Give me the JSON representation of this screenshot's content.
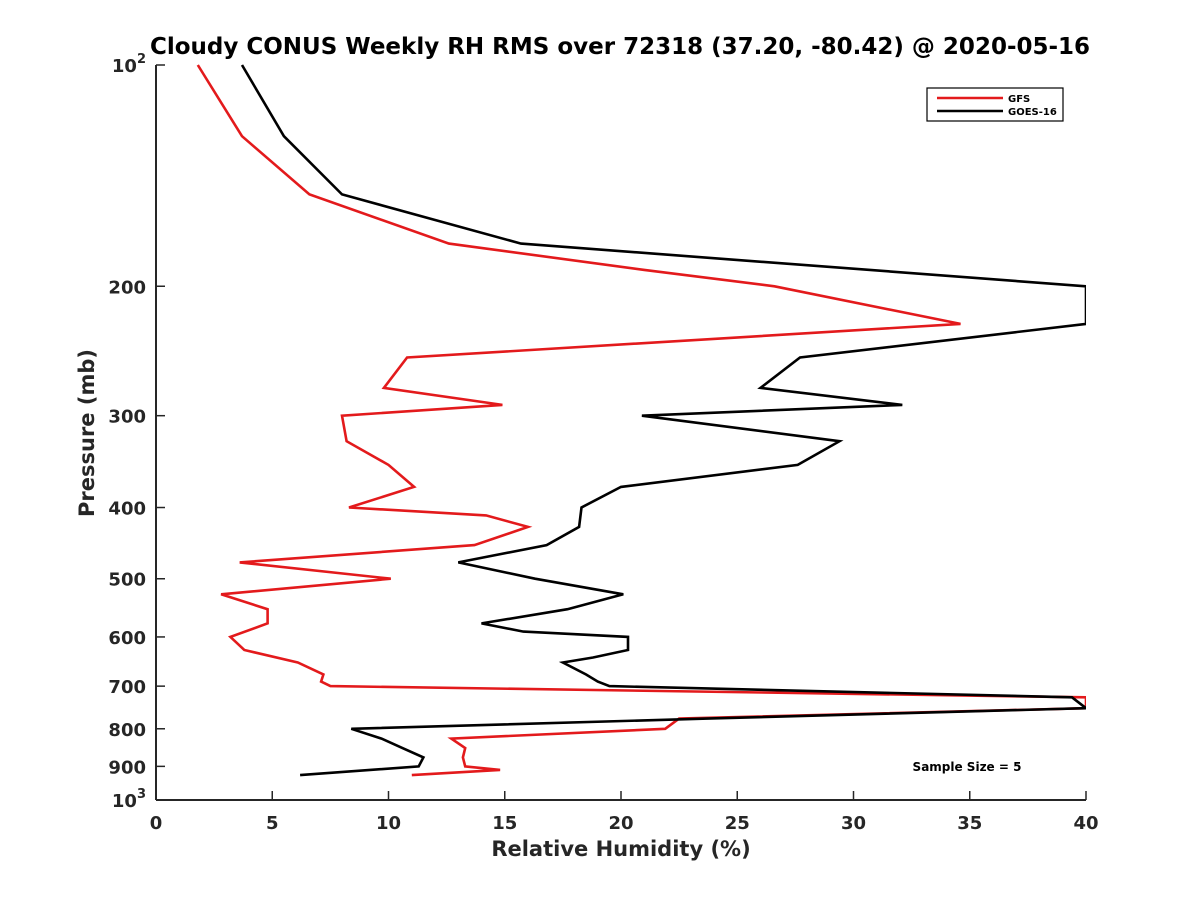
{
  "chart_data": {
    "type": "line",
    "title": "Cloudy CONUS Weekly RH RMS over 72318 (37.20, -80.42) @ 2020-05-16",
    "xlabel": "Relative Humidity (%)",
    "ylabel": "Pressure (mb)",
    "xlim": [
      0,
      40
    ],
    "ylim": [
      100,
      1000
    ],
    "yscale": "log",
    "y_reversed": true,
    "grid": false,
    "legend_position": "top-right",
    "x_ticks": [
      "0",
      "5",
      "10",
      "15",
      "20",
      "25",
      "30",
      "35",
      "40"
    ],
    "y_ticks": [
      {
        "value": 100,
        "base": "10",
        "exp": "2"
      },
      {
        "value": 200,
        "label": "200"
      },
      {
        "value": 300,
        "label": "300"
      },
      {
        "value": 400,
        "label": "400"
      },
      {
        "value": 500,
        "label": "500"
      },
      {
        "value": 600,
        "label": "600"
      },
      {
        "value": 700,
        "label": "700"
      },
      {
        "value": 800,
        "label": "800"
      },
      {
        "value": 900,
        "label": "900"
      },
      {
        "value": 1000,
        "base": "10",
        "exp": "3"
      }
    ],
    "annotation": "Sample Size = 5",
    "series": [
      {
        "name": "GFS",
        "color": "#e31a1c",
        "points": [
          [
            1.8,
            100
          ],
          [
            3.7,
            125
          ],
          [
            6.6,
            150
          ],
          [
            12.6,
            175
          ],
          [
            21.0,
            190
          ],
          [
            26.6,
            200
          ],
          [
            34.6,
            225
          ],
          [
            10.8,
            250
          ],
          [
            9.8,
            275
          ],
          [
            14.9,
            290
          ],
          [
            8.0,
            300
          ],
          [
            8.2,
            325
          ],
          [
            10.0,
            350
          ],
          [
            11.1,
            375
          ],
          [
            8.3,
            400
          ],
          [
            14.2,
            410
          ],
          [
            16.0,
            425
          ],
          [
            13.7,
            450
          ],
          [
            3.6,
            475
          ],
          [
            10.1,
            500
          ],
          [
            2.8,
            525
          ],
          [
            4.8,
            550
          ],
          [
            4.8,
            575
          ],
          [
            3.2,
            600
          ],
          [
            3.8,
            625
          ],
          [
            6.1,
            650
          ],
          [
            7.2,
            675
          ],
          [
            7.1,
            690
          ],
          [
            7.5,
            700
          ],
          [
            40.0,
            725
          ],
          [
            40.0,
            750
          ],
          [
            22.5,
            775
          ],
          [
            21.9,
            800
          ],
          [
            12.7,
            825
          ],
          [
            13.3,
            850
          ],
          [
            13.2,
            875
          ],
          [
            13.3,
            900
          ],
          [
            14.8,
            910
          ],
          [
            11.0,
            925
          ]
        ]
      },
      {
        "name": "GOES-16",
        "color": "#000000",
        "points": [
          [
            3.7,
            100
          ],
          [
            5.5,
            125
          ],
          [
            8.0,
            150
          ],
          [
            15.7,
            175
          ],
          [
            40.0,
            200
          ],
          [
            40.0,
            225
          ],
          [
            27.7,
            250
          ],
          [
            26.0,
            275
          ],
          [
            32.1,
            290
          ],
          [
            20.9,
            300
          ],
          [
            29.4,
            325
          ],
          [
            27.6,
            350
          ],
          [
            20.0,
            375
          ],
          [
            18.3,
            400
          ],
          [
            18.2,
            425
          ],
          [
            16.8,
            450
          ],
          [
            13.0,
            475
          ],
          [
            16.3,
            500
          ],
          [
            20.1,
            525
          ],
          [
            17.7,
            550
          ],
          [
            14.0,
            575
          ],
          [
            15.8,
            590
          ],
          [
            20.3,
            600
          ],
          [
            20.3,
            625
          ],
          [
            18.8,
            640
          ],
          [
            17.5,
            650
          ],
          [
            18.5,
            675
          ],
          [
            19.0,
            690
          ],
          [
            19.5,
            700
          ],
          [
            39.4,
            725
          ],
          [
            40.0,
            750
          ],
          [
            23.7,
            775
          ],
          [
            8.4,
            800
          ],
          [
            9.7,
            825
          ],
          [
            10.6,
            850
          ],
          [
            11.5,
            875
          ],
          [
            11.3,
            900
          ],
          [
            6.2,
            925
          ]
        ]
      }
    ]
  }
}
